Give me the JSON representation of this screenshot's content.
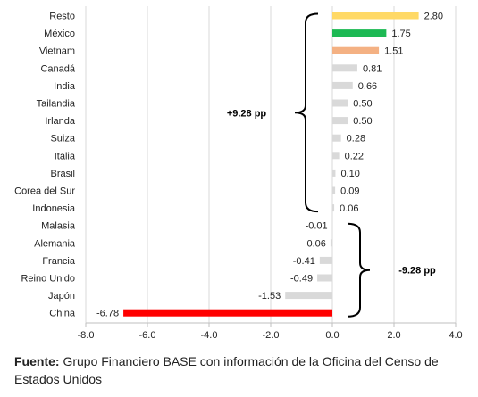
{
  "chart_data": {
    "type": "bar",
    "orientation": "horizontal",
    "categories": [
      "Resto",
      "México",
      "Vietnam",
      "Canadá",
      "India",
      "Tailandia",
      "Irlanda",
      "Suiza",
      "Italia",
      "Brasil",
      "Corea del Sur",
      "Indonesia",
      "Malasia",
      "Alemania",
      "Francia",
      "Reino Unido",
      "Japón",
      "China"
    ],
    "values": [
      2.8,
      1.75,
      1.51,
      0.81,
      0.66,
      0.5,
      0.5,
      0.28,
      0.22,
      0.1,
      0.09,
      0.06,
      -0.01,
      -0.06,
      -0.41,
      -0.49,
      -1.53,
      -6.78
    ],
    "value_labels": [
      "2.80",
      "1.75",
      "1.51",
      "0.81",
      "0.66",
      "0.50",
      "0.50",
      "0.28",
      "0.22",
      "0.10",
      "0.09",
      "0.06",
      "-0.01",
      "-0.06",
      "-0.41",
      "-0.49",
      "-1.53",
      "-6.78"
    ],
    "colors": [
      "#FFD966",
      "#1DB954",
      "#F4B183",
      "#D9D9D9",
      "#D9D9D9",
      "#D9D9D9",
      "#D9D9D9",
      "#D9D9D9",
      "#D9D9D9",
      "#D9D9D9",
      "#D9D9D9",
      "#D9D9D9",
      "#D9D9D9",
      "#D9D9D9",
      "#D9D9D9",
      "#D9D9D9",
      "#D9D9D9",
      "#FF0000"
    ],
    "xlim": [
      -8.0,
      4.0
    ],
    "x_ticks": [
      -8.0,
      -6.0,
      -4.0,
      -2.0,
      0.0,
      2.0,
      4.0
    ],
    "x_tick_labels": [
      "-8.0",
      "-6.0",
      "-4.0",
      "-2.0",
      "0.0",
      "2.0",
      "4.0"
    ],
    "grid": "vertical",
    "annotations": [
      {
        "text": "+9.28 pp",
        "from": "Resto",
        "to": "Indonesia"
      },
      {
        "text": "-9.28 pp",
        "from": "Malasia",
        "to": "China"
      }
    ]
  },
  "caption": {
    "label": "Fuente:",
    "text": " Grupo Financiero BASE con información de la Oficina del Censo de Estados Unidos"
  }
}
